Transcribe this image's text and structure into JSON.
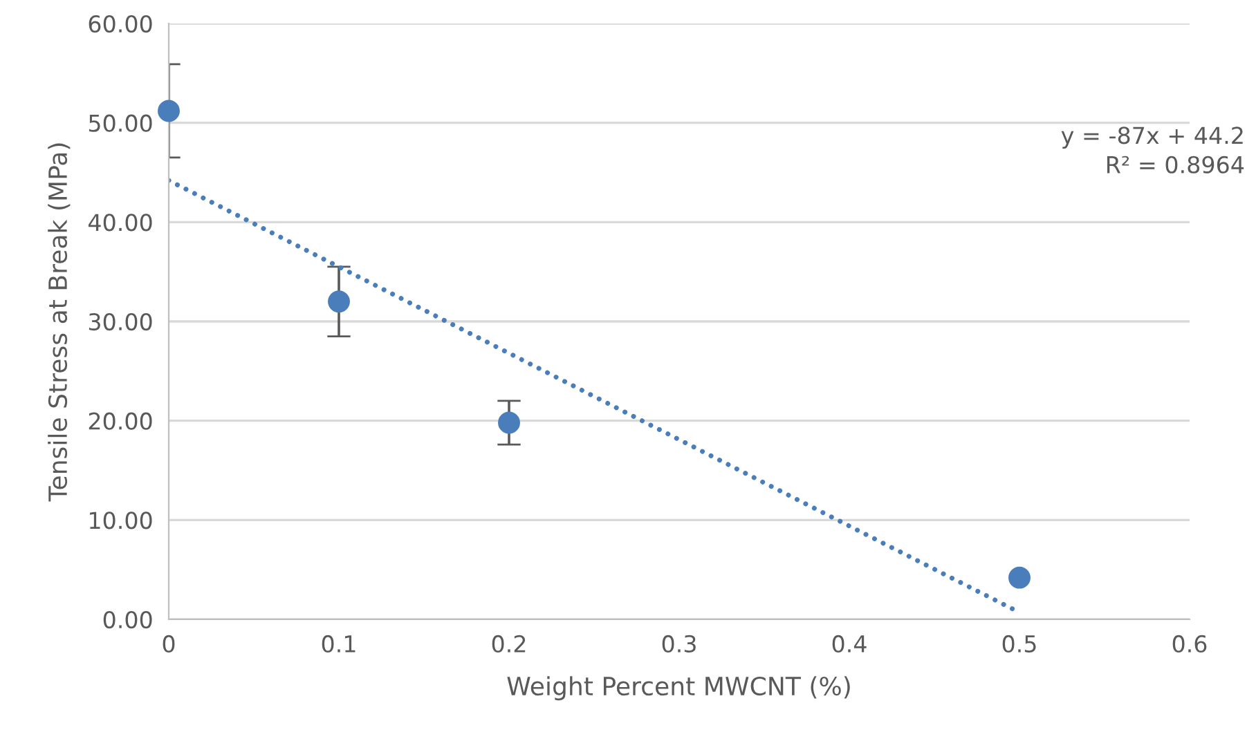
{
  "chart_data": {
    "type": "scatter",
    "xlabel": "Weight Percent MWCNT (%)",
    "ylabel": "Tensile Stress at Break (MPa)",
    "series": [
      {
        "color": "#4a7ebb",
        "x": [
          0,
          0.1,
          0.2,
          0.5
        ],
        "values": [
          51.2,
          32.0,
          19.8,
          4.2
        ],
        "errors": [
          4.7,
          3.5,
          2.2,
          null
        ],
        "marker": "circle"
      },
      {
        "type": "line",
        "color": "#4a7ebb",
        "x": [
          0,
          0.5
        ],
        "values": [
          44.2,
          0.7
        ],
        "line_style": "dotted",
        "marker": "none"
      }
    ],
    "xlim": [
      0,
      0.6
    ],
    "xticks": [
      0,
      0.1,
      0.2,
      0.3,
      0.4,
      0.5,
      0.6
    ],
    "ylim": [
      0,
      60
    ],
    "yticks": [
      {
        "value": 0,
        "label": "0.00"
      },
      {
        "value": 10,
        "label": "10.00"
      },
      {
        "value": 20,
        "label": "20.00"
      },
      {
        "value": 30,
        "label": "30.00"
      },
      {
        "value": 40,
        "label": "40.00"
      },
      {
        "value": 50,
        "label": "50.00"
      },
      {
        "value": 60,
        "label": "60.00"
      }
    ],
    "grid": "y",
    "annotations": [
      "y = -87x + 44.2",
      "R² = 0.8964"
    ]
  }
}
